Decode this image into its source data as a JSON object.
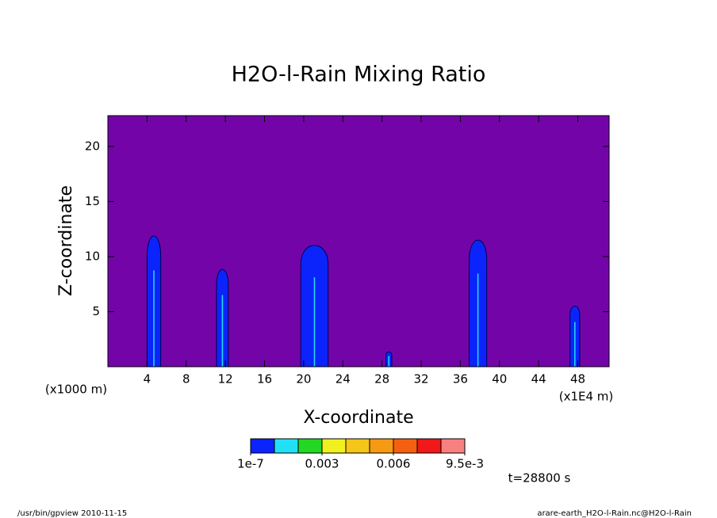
{
  "chart_data": {
    "type": "contour",
    "title": "H2O-l-Rain Mixing Ratio",
    "xlabel": "X-coordinate",
    "ylabel": "Z-coordinate",
    "x_unit": "(x1000 m)",
    "x_unit_right": "(x1E4 m)",
    "xlim": [
      0,
      51.2
    ],
    "ylim": [
      0,
      22.8
    ],
    "xticks": [
      4,
      8,
      12,
      16,
      20,
      24,
      28,
      32,
      36,
      40,
      44,
      48
    ],
    "yticks": [
      5,
      10,
      15,
      20
    ],
    "background": "#7305a8",
    "cells": [
      {
        "x": 4.7,
        "width": 1.4,
        "top": 12.5
      },
      {
        "x": 11.7,
        "width": 1.2,
        "top": 9.3
      },
      {
        "x": 21.1,
        "width": 2.8,
        "top": 11.6
      },
      {
        "x": 28.7,
        "width": 0.6,
        "top": 1.4
      },
      {
        "x": 37.8,
        "width": 1.8,
        "top": 12.1
      },
      {
        "x": 47.7,
        "width": 1.0,
        "top": 5.8
      }
    ],
    "colorbar": {
      "colors": [
        "#0b24fb",
        "#21e0f6",
        "#22d822",
        "#f0f020",
        "#f5c518",
        "#f59a12",
        "#f56010",
        "#f01818",
        "#f88080"
      ],
      "bounds": [
        1e-07,
        0.001,
        0.002,
        0.003,
        0.004,
        0.005,
        0.006,
        0.007,
        0.008,
        0.0095
      ],
      "ticks": [
        1e-07,
        0.003,
        0.006,
        {
          "value": 0.0095,
          "label": "9.5e-3"
        }
      ]
    },
    "time_label": "t=28800 s",
    "footer_left": "/usr/bin/gpview  2010-11-15",
    "footer_right": "arare-earth_H2O-l-Rain.nc@H2O-l-Rain"
  }
}
